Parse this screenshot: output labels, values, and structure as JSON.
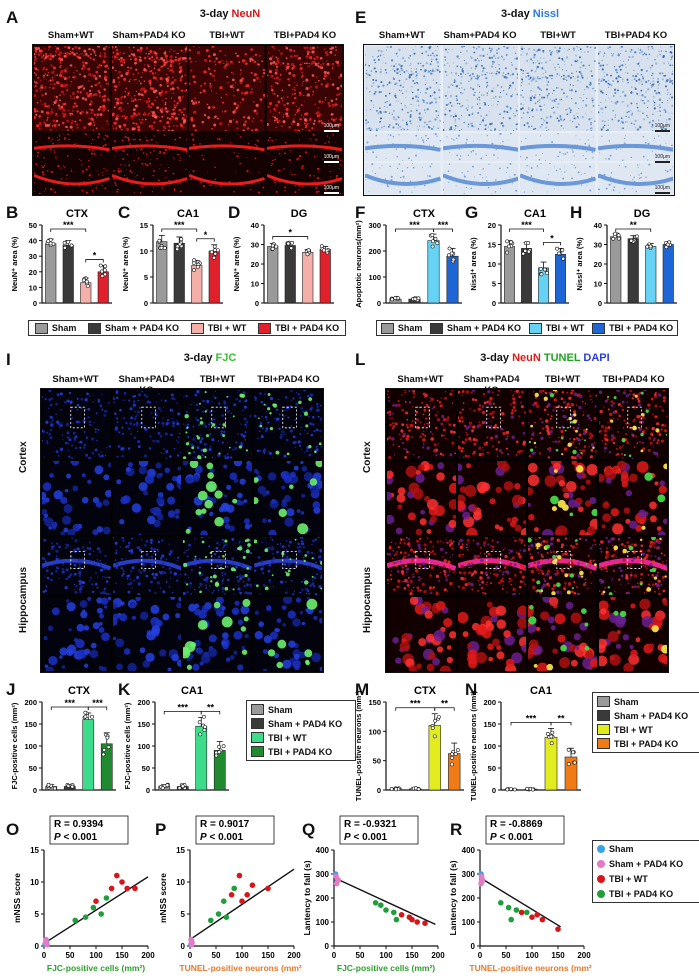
{
  "panels": {
    "A": {
      "letter": "A",
      "title_prefix": "3-day ",
      "title_stain": "NeuN",
      "columns": [
        "Sham+WT",
        "Sham+PAD4 KO",
        "TBI+WT",
        "TBI+PAD4 KO"
      ],
      "scale": "100μm",
      "colors": {
        "stain": "#d31818",
        "bg": "#3a0606"
      }
    },
    "E": {
      "letter": "E",
      "title_prefix": "3-day ",
      "title_stain": "Nissl",
      "columns": [
        "Sham+WT",
        "Sham+PAD4 KO",
        "TBI+WT",
        "TBI+PAD4 KO"
      ],
      "scale": "100μm",
      "colors": {
        "stain": "#2f6fcf",
        "bg": "#cfdceb"
      }
    },
    "I": {
      "letter": "I",
      "title_prefix": "3-day ",
      "title_stain": "FJC",
      "columns": [
        "Sham+WT",
        "Sham+PAD4 KO",
        "TBI+WT",
        "TBI+PAD4 KO"
      ],
      "rows": [
        "Cortex",
        "Hippocampus"
      ],
      "colors": {
        "stain": "#36c236"
      }
    },
    "L": {
      "letter": "L",
      "title_prefix": "3-day ",
      "title_s1": "NeuN",
      "title_s2": "TUNEL",
      "title_s3": "DAPI",
      "columns": [
        "Sham+WT",
        "Sham+PAD4 KO",
        "TBI+WT",
        "TBI+PAD4 KO"
      ],
      "rows": [
        "Cortex",
        "Hippocampus"
      ],
      "colors": {
        "s1": "#e01b1b",
        "s2": "#1fa51f",
        "s3": "#2b3fd9"
      }
    }
  },
  "legends": {
    "neun": [
      "Sham",
      "Sham + PAD4 KO",
      "TBI + WT",
      "TBI + PAD4 KO"
    ],
    "nissl": [
      "Sham",
      "Sham + PAD4 KO",
      "TBI + WT",
      "TBI + PAD4 KO"
    ],
    "fjc": [
      "Sham",
      "Sham + PAD4 KO",
      "TBI + WT",
      "TBI + PAD4 KO"
    ],
    "tunel": [
      "Sham",
      "Sham + PAD4 KO",
      "TBI + WT",
      "TBI + PAD4 KO"
    ],
    "corr": [
      "Sham",
      "Sham + PAD4 KO",
      "TBI + WT",
      "TBI + PAD4 KO"
    ]
  },
  "chart_data": [
    {
      "id": "B",
      "type": "bar",
      "title": "CTX",
      "ylabel": "NeuN⁺ area (%)",
      "ylim": [
        0,
        50
      ],
      "yticks": [
        0,
        10,
        20,
        30,
        40,
        50
      ],
      "categories": [
        "Sham",
        "Sham + PAD4 KO",
        "TBI + WT",
        "TBI + PAD4 KO"
      ],
      "values": [
        38,
        37,
        13,
        20
      ],
      "errors": [
        3,
        3,
        3,
        4
      ],
      "colors": [
        "#9a9a9a",
        "#3a3a3a",
        "#f4b0a8",
        "#e0202a"
      ],
      "sig": [
        {
          "a": 0,
          "b": 2,
          "label": "***",
          "level": 1
        },
        {
          "a": 2,
          "b": 3,
          "label": "*",
          "level": 0
        }
      ]
    },
    {
      "id": "C",
      "type": "bar",
      "title": "CA1",
      "ylabel": "NeuN⁺ area (%)",
      "ylim": [
        0,
        15
      ],
      "yticks": [
        0,
        5,
        10,
        15
      ],
      "categories": [
        "Sham",
        "Sham + PAD4 KO",
        "TBI + WT",
        "TBI + PAD4 KO"
      ],
      "values": [
        11.8,
        11.5,
        7.2,
        10
      ],
      "errors": [
        1.2,
        1.2,
        1,
        1.2
      ],
      "colors": [
        "#9a9a9a",
        "#3a3a3a",
        "#f4b0a8",
        "#e0202a"
      ],
      "sig": [
        {
          "a": 0,
          "b": 2,
          "label": "***",
          "level": 1
        },
        {
          "a": 2,
          "b": 3,
          "label": "*",
          "level": 0
        }
      ]
    },
    {
      "id": "D",
      "type": "bar",
      "title": "DG",
      "ylabel": "NeuN⁺ area (%)",
      "ylim": [
        0,
        40
      ],
      "yticks": [
        0,
        10,
        20,
        30,
        40
      ],
      "categories": [
        "Sham",
        "Sham + PAD4 KO",
        "TBI + WT",
        "TBI + PAD4 KO"
      ],
      "values": [
        29,
        29.5,
        26,
        27.5
      ],
      "errors": [
        1.5,
        1.5,
        1.5,
        1.5
      ],
      "colors": [
        "#9a9a9a",
        "#3a3a3a",
        "#f4b0a8",
        "#e0202a"
      ],
      "sig": [
        {
          "a": 0,
          "b": 2,
          "label": "*",
          "level": 0
        }
      ]
    },
    {
      "id": "F",
      "type": "bar",
      "title": "CTX",
      "ylabel": "Apoptotic neurons(mm²)",
      "ylim": [
        0,
        300
      ],
      "yticks": [
        0,
        100,
        200,
        300
      ],
      "categories": [
        "Sham",
        "Sham + PAD4 KO",
        "TBI + WT",
        "TBI + PAD4 KO"
      ],
      "values": [
        15,
        15,
        240,
        180
      ],
      "errors": [
        5,
        5,
        25,
        30
      ],
      "colors": [
        "#9a9a9a",
        "#3a3a3a",
        "#66d3f5",
        "#1e66d6"
      ],
      "sig": [
        {
          "a": 0,
          "b": 2,
          "label": "***",
          "level": 0
        },
        {
          "a": 2,
          "b": 3,
          "label": "***",
          "level": 0
        }
      ]
    },
    {
      "id": "G",
      "type": "bar",
      "title": "CA1",
      "ylabel": "Nissl⁺ area (%)",
      "ylim": [
        0,
        20
      ],
      "yticks": [
        0,
        5,
        10,
        15,
        20
      ],
      "categories": [
        "Sham",
        "Sham + PAD4 KO",
        "TBI + WT",
        "TBI + PAD4 KO"
      ],
      "values": [
        14.5,
        14,
        9,
        12.5
      ],
      "errors": [
        1.5,
        1.5,
        1.5,
        1.5
      ],
      "colors": [
        "#9a9a9a",
        "#3a3a3a",
        "#66d3f5",
        "#1e66d6"
      ],
      "sig": [
        {
          "a": 0,
          "b": 2,
          "label": "***",
          "level": 1
        },
        {
          "a": 2,
          "b": 3,
          "label": "*",
          "level": 0
        }
      ]
    },
    {
      "id": "H",
      "type": "bar",
      "title": "DG",
      "ylabel": "Nissl⁺ area (%)",
      "ylim": [
        0,
        40
      ],
      "yticks": [
        0,
        10,
        20,
        30,
        40
      ],
      "categories": [
        "Sham",
        "Sham + PAD4 KO",
        "TBI + WT",
        "TBI + PAD4 KO"
      ],
      "values": [
        34,
        33,
        29,
        30
      ],
      "errors": [
        1.5,
        1.5,
        1.5,
        1.5
      ],
      "colors": [
        "#9a9a9a",
        "#3a3a3a",
        "#66d3f5",
        "#1e66d6"
      ],
      "sig": [
        {
          "a": 0,
          "b": 2,
          "label": "**",
          "level": 0
        }
      ]
    },
    {
      "id": "J",
      "type": "bar",
      "title": "CTX",
      "ylabel": "FJC-positive cells (mm²)",
      "ylim": [
        0,
        200
      ],
      "yticks": [
        0,
        50,
        100,
        150,
        200
      ],
      "categories": [
        "Sham",
        "Sham + PAD4 KO",
        "TBI + WT",
        "TBI + PAD4 KO"
      ],
      "values": [
        8,
        8,
        160,
        105
      ],
      "errors": [
        4,
        4,
        15,
        25
      ],
      "colors": [
        "#9a9a9a",
        "#3a3a3a",
        "#3ddc8a",
        "#1f8a2f"
      ],
      "sig": [
        {
          "a": 0,
          "b": 2,
          "label": "***",
          "level": 0
        },
        {
          "a": 2,
          "b": 3,
          "label": "***",
          "level": 0
        }
      ]
    },
    {
      "id": "K",
      "type": "bar",
      "title": "CA1",
      "ylabel": "FJC-positive cells (mm²)",
      "ylim": [
        0,
        200
      ],
      "yticks": [
        0,
        50,
        100,
        150,
        200
      ],
      "categories": [
        "Sham",
        "Sham + PAD4 KO",
        "TBI + WT",
        "TBI + PAD4 KO"
      ],
      "values": [
        8,
        8,
        145,
        90
      ],
      "errors": [
        4,
        4,
        20,
        20
      ],
      "colors": [
        "#9a9a9a",
        "#3a3a3a",
        "#3ddc8a",
        "#1f8a2f"
      ],
      "sig": [
        {
          "a": 0,
          "b": 2,
          "label": "***",
          "level": 0
        },
        {
          "a": 2,
          "b": 3,
          "label": "**",
          "level": 0
        }
      ]
    },
    {
      "id": "M",
      "type": "bar",
      "title": "CTX",
      "ylabel": "TUNEL-positive neurons (mm²)",
      "ylim": [
        0,
        150
      ],
      "yticks": [
        0,
        50,
        100,
        150
      ],
      "categories": [
        "Sham",
        "Sham + PAD4 KO",
        "TBI + WT",
        "TBI + PAD4 KO"
      ],
      "values": [
        2,
        2,
        110,
        62
      ],
      "errors": [
        1,
        1,
        20,
        18
      ],
      "colors": [
        "#9a9a9a",
        "#3a3a3a",
        "#e3ec1e",
        "#f07a16"
      ],
      "sig": [
        {
          "a": 0,
          "b": 2,
          "label": "***",
          "level": 0
        },
        {
          "a": 2,
          "b": 3,
          "label": "**",
          "level": 0
        }
      ]
    },
    {
      "id": "N",
      "type": "bar",
      "title": "CA1",
      "ylabel": "TUNEL-positive neurons (mm²)",
      "ylim": [
        0,
        200
      ],
      "yticks": [
        0,
        50,
        100,
        150,
        200
      ],
      "categories": [
        "Sham",
        "Sham + PAD4 KO",
        "TBI + WT",
        "TBI + PAD4 KO"
      ],
      "values": [
        2,
        2,
        120,
        75
      ],
      "errors": [
        1,
        1,
        20,
        20
      ],
      "colors": [
        "#9a9a9a",
        "#3a3a3a",
        "#e3ec1e",
        "#f07a16"
      ],
      "sig": [
        {
          "a": 0,
          "b": 2,
          "label": "***",
          "level": 0
        },
        {
          "a": 2,
          "b": 3,
          "label": "**",
          "level": 0
        }
      ]
    },
    {
      "id": "O",
      "type": "scatter",
      "xlabel": "FJC-positive cells (mm²)",
      "ylabel": "mNSS score",
      "r": "R = 0.9394",
      "p": "< 0.001",
      "xlim": [
        0,
        200
      ],
      "ylim": [
        0,
        15
      ],
      "xticks": [
        0,
        50,
        100,
        150,
        200
      ],
      "yticks": [
        0,
        5,
        10,
        15
      ],
      "line": [
        [
          0,
          0.4
        ],
        [
          200,
          10.8
        ]
      ],
      "xcolor": "#2ca02c",
      "points": [
        [
          2,
          0.3,
          0
        ],
        [
          5,
          0.8,
          0
        ],
        [
          3,
          0.5,
          1
        ],
        [
          6,
          0.2,
          1
        ],
        [
          4,
          1,
          1
        ],
        [
          100,
          7,
          2
        ],
        [
          130,
          9,
          2
        ],
        [
          140,
          11,
          2
        ],
        [
          160,
          9,
          2
        ],
        [
          175,
          9,
          2
        ],
        [
          150,
          10,
          2
        ],
        [
          80,
          4.5,
          3
        ],
        [
          95,
          6,
          3
        ],
        [
          110,
          5,
          3
        ],
        [
          120,
          7.5,
          3
        ],
        [
          60,
          4,
          3
        ]
      ]
    },
    {
      "id": "P",
      "type": "scatter",
      "xlabel": "TUNEL-positive neurons (mm²)",
      "ylabel": "mNSS score",
      "r": "R = 0.9017",
      "p": "< 0.001",
      "xlim": [
        0,
        200
      ],
      "ylim": [
        0,
        15
      ],
      "xticks": [
        0,
        50,
        100,
        150,
        200
      ],
      "yticks": [
        0,
        5,
        10,
        15
      ],
      "line": [
        [
          0,
          1
        ],
        [
          200,
          12
        ]
      ],
      "xcolor": "#e8782a",
      "points": [
        [
          2,
          0.3,
          0
        ],
        [
          3,
          0.8,
          0
        ],
        [
          4,
          0.5,
          1
        ],
        [
          2,
          1,
          1
        ],
        [
          3,
          0.2,
          1
        ],
        [
          80,
          8,
          2
        ],
        [
          95,
          11,
          2
        ],
        [
          110,
          8,
          2
        ],
        [
          120,
          9.5,
          2
        ],
        [
          150,
          9,
          2
        ],
        [
          100,
          7,
          2
        ],
        [
          40,
          4,
          3
        ],
        [
          55,
          5,
          3
        ],
        [
          65,
          7,
          3
        ],
        [
          70,
          4.5,
          3
        ],
        [
          85,
          9,
          3
        ]
      ]
    },
    {
      "id": "Q",
      "type": "scatter",
      "xlabel": "FJC-positive cells (mm²)",
      "ylabel": "Lantency to fall (s)",
      "r": "R = -0.9321",
      "p": "< 0.001",
      "xlim": [
        0,
        200
      ],
      "ylim": [
        0,
        400
      ],
      "xticks": [
        0,
        50,
        100,
        150,
        200
      ],
      "yticks": [
        0,
        100,
        200,
        300,
        400
      ],
      "line": [
        [
          0,
          285
        ],
        [
          195,
          90
        ]
      ],
      "xcolor": "#2ca02c",
      "points": [
        [
          3,
          300,
          0
        ],
        [
          6,
          270,
          0
        ],
        [
          4,
          290,
          1
        ],
        [
          8,
          275,
          1
        ],
        [
          5,
          260,
          1
        ],
        [
          130,
          130,
          2
        ],
        [
          150,
          110,
          2
        ],
        [
          160,
          100,
          2
        ],
        [
          175,
          95,
          2
        ],
        [
          145,
          120,
          2
        ],
        [
          80,
          180,
          3
        ],
        [
          100,
          150,
          3
        ],
        [
          115,
          140,
          3
        ],
        [
          90,
          170,
          3
        ],
        [
          120,
          110,
          3
        ]
      ]
    },
    {
      "id": "R",
      "type": "scatter",
      "xlabel": "TUNEL-positive neurons (mm²)",
      "ylabel": "Lantency to fall (s)",
      "r": "R = -0.8869",
      "p": "< 0.001",
      "xlim": [
        0,
        200
      ],
      "ylim": [
        0,
        400
      ],
      "xticks": [
        0,
        50,
        100,
        150,
        200
      ],
      "yticks": [
        0,
        100,
        200,
        300,
        400
      ],
      "line": [
        [
          0,
          285
        ],
        [
          155,
          80
        ]
      ],
      "xcolor": "#e8782a",
      "points": [
        [
          2,
          300,
          0
        ],
        [
          4,
          270,
          0
        ],
        [
          3,
          290,
          1
        ],
        [
          5,
          275,
          1
        ],
        [
          2,
          260,
          1
        ],
        [
          80,
          140,
          2
        ],
        [
          100,
          120,
          2
        ],
        [
          120,
          110,
          2
        ],
        [
          150,
          70,
          2
        ],
        [
          110,
          130,
          2
        ],
        [
          40,
          180,
          3
        ],
        [
          55,
          160,
          3
        ],
        [
          60,
          110,
          3
        ],
        [
          70,
          150,
          3
        ],
        [
          90,
          140,
          3
        ]
      ]
    }
  ],
  "corr_colors": [
    "#36a3e6",
    "#e77ac6",
    "#d6161b",
    "#1f9e3a"
  ]
}
